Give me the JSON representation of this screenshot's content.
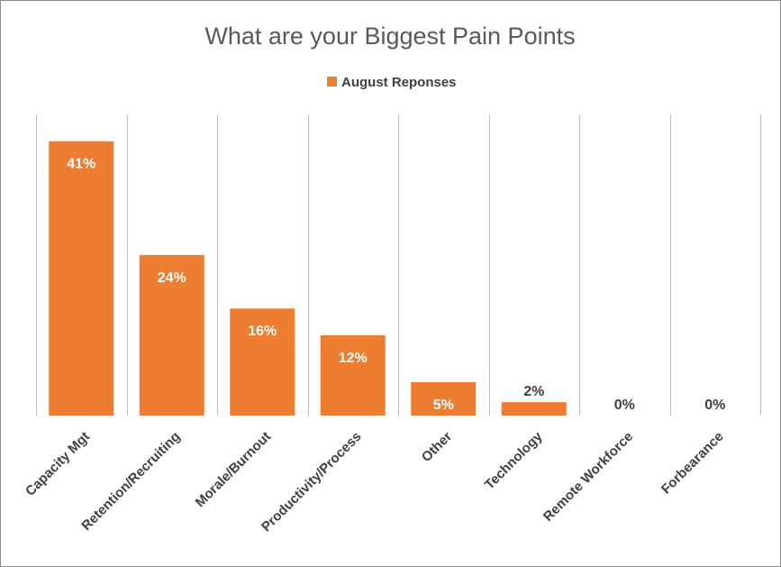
{
  "chart_data": {
    "type": "bar",
    "title": "What are your Biggest Pain Points",
    "xlabel": "",
    "ylabel": "",
    "categories": [
      "Capacity Mgt",
      "Retention/Recruiting",
      "Morale/Burnout",
      "Productivity/Process",
      "Other",
      "Technology",
      "Remote Workforce",
      "Forbearance"
    ],
    "series": [
      {
        "name": "August Reponses",
        "values": [
          41,
          24,
          16,
          12,
          5,
          2,
          0,
          0
        ],
        "labels": [
          "41%",
          "24%",
          "16%",
          "12%",
          "5%",
          "2%",
          "0%",
          "0%"
        ]
      }
    ],
    "ylim": [
      0,
      45
    ],
    "grid": "vertical category separators",
    "legend_position": "top",
    "colors": {
      "bar": "#ED7D31",
      "grid": "#BFBFBF",
      "label_inside": "#FFFFFF",
      "label_outside": "#404040"
    }
  }
}
